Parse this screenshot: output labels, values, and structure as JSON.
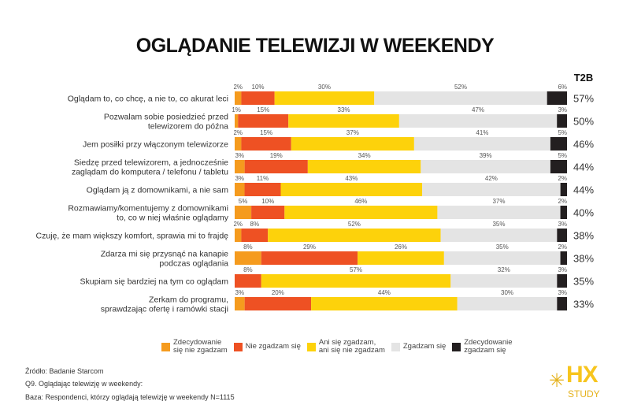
{
  "chart_data": {
    "type": "bar",
    "orientation": "horizontal-stacked-100",
    "title": "OGLĄDANIE TELEWIZJI W WEEKENDY",
    "t2b_header": "T2B",
    "categories": [
      [
        "Oglądam to, co chcę, a nie to, co akurat leci"
      ],
      [
        "Pozwalam sobie posiedzieć przed",
        "telewizorem do późna"
      ],
      [
        "Jem posiłki przy włączonym telewizorze"
      ],
      [
        "Siedzę przed telewizorem, a jednocześnie",
        "zaglądam do komputera / telefonu / tabletu"
      ],
      [
        "Oglądam ją z domownikami, a nie sam"
      ],
      [
        "Rozmawiamy/komentujemy z domownikami",
        "to, co w niej właśnie oglądamy"
      ],
      [
        "Czuję, że mam większy komfort, sprawia mi to frajdę"
      ],
      [
        "Zdarza mi się przysnąć na kanapie",
        "podczas oglądania"
      ],
      [
        "Skupiam się bardziej na tym co oglądam"
      ],
      [
        "Zerkam do programu,",
        "sprawdzając ofertę i ramówki stacji"
      ]
    ],
    "series": [
      {
        "name": "Zdecydowanie się nie zgadzam",
        "legend": [
          "Zdecydowanie",
          "się nie zgadzam"
        ],
        "color": "#F59B1E",
        "values": [
          2,
          1,
          2,
          3,
          3,
          5,
          2,
          8,
          0,
          3
        ]
      },
      {
        "name": "Nie zgadzam się",
        "legend": [
          "Nie zgadzam się"
        ],
        "color": "#EE5123",
        "values": [
          10,
          15,
          15,
          19,
          11,
          10,
          8,
          29,
          8,
          20
        ]
      },
      {
        "name": "Ani się zgadzam, ani się nie zgadzam",
        "legend": [
          "Ani się zgadzam,",
          "ani się nie zgadzam"
        ],
        "color": "#FDD20B",
        "values": [
          30,
          33,
          37,
          34,
          43,
          46,
          52,
          26,
          57,
          44
        ]
      },
      {
        "name": "Zgadzam się",
        "legend": [
          "Zgadzam się"
        ],
        "color": "#E4E4E4",
        "values": [
          52,
          47,
          41,
          39,
          42,
          37,
          35,
          35,
          32,
          30
        ]
      },
      {
        "name": "Zdecydowanie zgadzam się",
        "legend": [
          "Zdecydowanie",
          "zgadzam się"
        ],
        "color": "#231F20",
        "values": [
          6,
          3,
          5,
          5,
          2,
          2,
          3,
          2,
          3,
          3
        ]
      }
    ],
    "t2b": [
      "57%",
      "50%",
      "46%",
      "44%",
      "44%",
      "40%",
      "38%",
      "38%",
      "35%",
      "33%"
    ],
    "xlim": [
      0,
      100
    ],
    "legend_position": "bottom"
  },
  "footer": {
    "source": "Źródło: Badanie Starcom",
    "question": "Q9. Oglądając telewizję w weekendy:",
    "base": "Baza: Respondenci, którzy oglądają telewizję w weekendy N=1115"
  },
  "logo": {
    "top": "HX",
    "bottom": "STUDY"
  }
}
